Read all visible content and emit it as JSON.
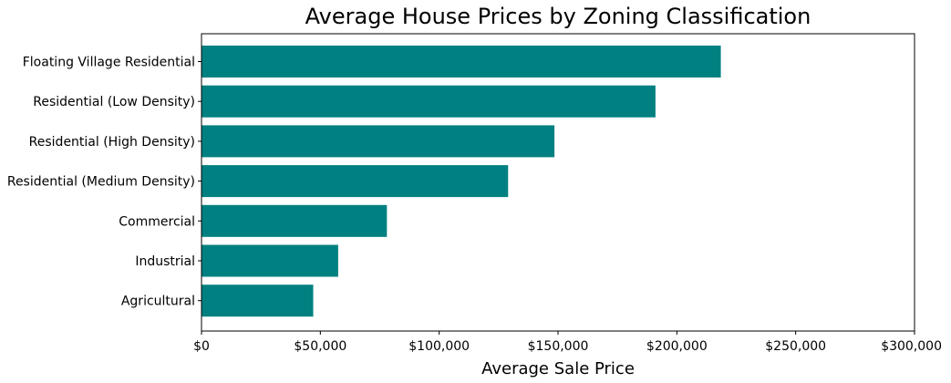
{
  "chart_data": {
    "type": "bar",
    "orientation": "horizontal",
    "title": "Average House Prices by Zoning Classification",
    "xlabel": "Average Sale Price",
    "ylabel": "",
    "categories": [
      "Floating Village Residential",
      "Residential (Low Density)",
      "Residential (High Density)",
      "Residential (Medium Density)",
      "Commercial",
      "Industrial",
      "Agricultural"
    ],
    "values": [
      218500,
      191000,
      148500,
      129000,
      78000,
      57500,
      47000
    ],
    "xlim": [
      0,
      300000
    ],
    "xticks": [
      0,
      50000,
      100000,
      150000,
      200000,
      250000,
      300000
    ],
    "xtick_labels": [
      "$0",
      "$50,000",
      "$100,000",
      "$150,000",
      "$200,000",
      "$250,000",
      "$300,000"
    ],
    "bar_color": "#008080",
    "grid": false,
    "legend": "none"
  }
}
